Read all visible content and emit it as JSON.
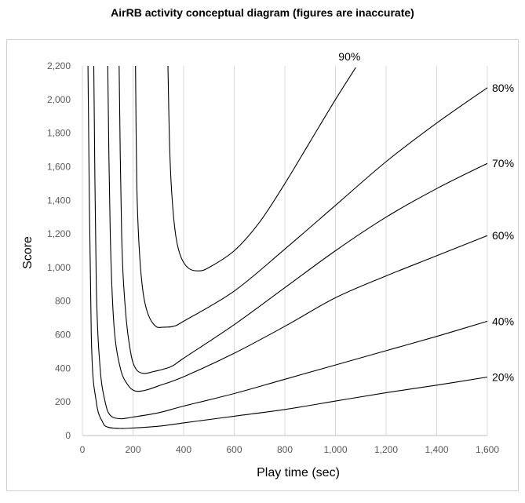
{
  "chart_data": {
    "type": "line",
    "title": "AirRB activity conceptual diagram (figures are inaccurate)",
    "xlabel": "Play time (sec)",
    "ylabel": "Score",
    "xlim": [
      0,
      1600
    ],
    "ylim": [
      0,
      2200
    ],
    "x_ticks": [
      0,
      200,
      400,
      600,
      800,
      1000,
      1200,
      1400,
      1600
    ],
    "x_tick_labels": [
      "0",
      "200",
      "400",
      "600",
      "800",
      "1,000",
      "1,200",
      "1,400",
      "1,600"
    ],
    "y_ticks": [
      0,
      200,
      400,
      600,
      800,
      1000,
      1200,
      1400,
      1600,
      1800,
      2000,
      2200
    ],
    "y_tick_labels": [
      "0",
      "200",
      "400",
      "600",
      "800",
      "1,000",
      "1,200",
      "1,400",
      "1,600",
      "1,800",
      "2,000",
      "2,200"
    ],
    "grid": "vertical",
    "series": [
      {
        "name": "20%",
        "x": [
          22,
          35,
          55,
          80,
          100,
          150,
          200,
          300,
          400,
          600,
          800,
          1000,
          1200,
          1400,
          1600
        ],
        "y": [
          2200,
          600,
          200,
          80,
          50,
          42,
          45,
          55,
          75,
          115,
          155,
          205,
          255,
          300,
          348
        ]
      },
      {
        "name": "40%",
        "x": [
          45,
          55,
          70,
          90,
          110,
          150,
          200,
          300,
          400,
          600,
          800,
          1000,
          1200,
          1400,
          1600
        ],
        "y": [
          2200,
          900,
          400,
          200,
          120,
          100,
          110,
          135,
          175,
          250,
          335,
          420,
          505,
          590,
          680
        ]
      },
      {
        "name": "60%",
        "x": [
          100,
          110,
          125,
          150,
          180,
          210,
          250,
          300,
          400,
          600,
          800,
          1000,
          1200,
          1400,
          1600
        ],
        "y": [
          2200,
          1200,
          650,
          400,
          300,
          265,
          270,
          295,
          350,
          490,
          650,
          820,
          950,
          1070,
          1190
        ]
      },
      {
        "name": "70%",
        "x": [
          145,
          155,
          170,
          190,
          210,
          240,
          280,
          350,
          400,
          600,
          800,
          1000,
          1200,
          1400,
          1600
        ],
        "y": [
          2200,
          1200,
          750,
          500,
          400,
          370,
          380,
          410,
          460,
          660,
          880,
          1100,
          1300,
          1470,
          1620
        ]
      },
      {
        "name": "80%",
        "x": [
          210,
          215,
          225,
          240,
          260,
          290,
          320,
          360,
          400,
          600,
          800,
          1000,
          1200,
          1400,
          1600
        ],
        "y": [
          2200,
          1500,
          1100,
          850,
          720,
          650,
          645,
          650,
          680,
          860,
          1110,
          1370,
          1630,
          1860,
          2070
        ]
      },
      {
        "name": "90%",
        "x": [
          338,
          345,
          355,
          370,
          390,
          420,
          460,
          500,
          600,
          700,
          800,
          900,
          1000,
          1080
        ],
        "y": [
          2200,
          1700,
          1400,
          1180,
          1060,
          995,
          980,
          1000,
          1100,
          1270,
          1500,
          1750,
          2000,
          2190
        ]
      }
    ],
    "curve_labels": [
      "90%",
      "80%",
      "70%",
      "60%",
      "40%",
      "20%"
    ]
  }
}
